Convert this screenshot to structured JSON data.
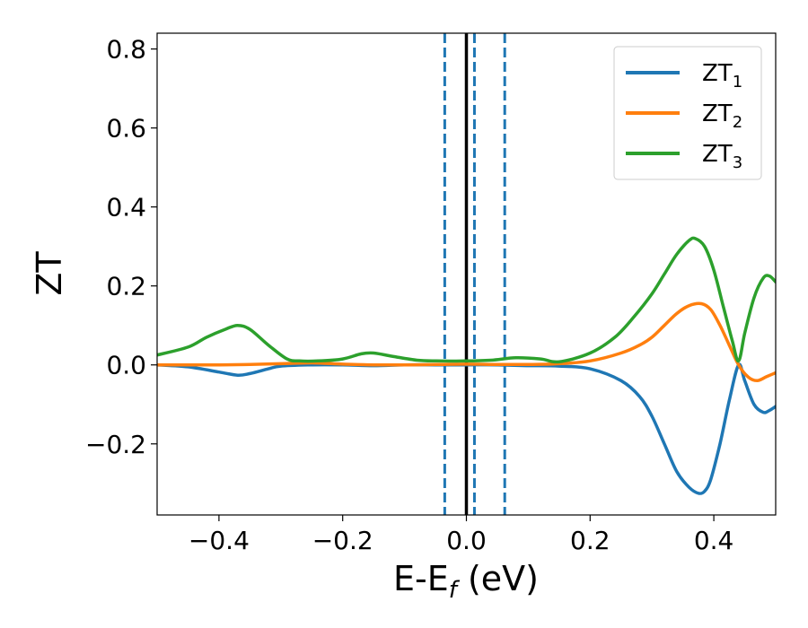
{
  "chart_data": {
    "type": "line",
    "title": "",
    "xlabel_main": "E-E",
    "xlabel_sub": "f",
    "xlabel_unit": " (eV)",
    "ylabel": "ZT",
    "xlim": [
      -0.5,
      0.5
    ],
    "ylim": [
      -0.38,
      0.84
    ],
    "xticks": [
      -0.4,
      -0.2,
      0.0,
      0.2,
      0.4
    ],
    "xtick_labels": [
      "−0.4",
      "−0.2",
      "0.0",
      "0.2",
      "0.4"
    ],
    "yticks": [
      -0.2,
      0.0,
      0.2,
      0.4,
      0.6,
      0.8
    ],
    "ytick_labels": [
      "−0.2",
      "0.0",
      "0.2",
      "0.4",
      "0.6",
      "0.8"
    ],
    "grid": false,
    "legend_position": "top-right",
    "vlines": [
      {
        "x": 0.0,
        "style": "solid",
        "color": "#000000"
      },
      {
        "x": -0.035,
        "style": "dashed",
        "color": "#1f77b4"
      },
      {
        "x": 0.013,
        "style": "dashed",
        "color": "#1f77b4"
      },
      {
        "x": 0.062,
        "style": "dashed",
        "color": "#1f77b4"
      }
    ],
    "series": [
      {
        "name": "ZT",
        "name_sub": "1",
        "color": "#1f77b4",
        "x": [
          -0.5,
          -0.45,
          -0.4,
          -0.37,
          -0.35,
          -0.32,
          -0.3,
          -0.25,
          -0.2,
          -0.15,
          -0.1,
          -0.05,
          0.0,
          0.05,
          0.1,
          0.15,
          0.2,
          0.25,
          0.28,
          0.3,
          0.32,
          0.34,
          0.36,
          0.375,
          0.385,
          0.395,
          0.41,
          0.425,
          0.44,
          0.45,
          0.465,
          0.48,
          0.49,
          0.5
        ],
        "y": [
          0.0,
          -0.005,
          -0.018,
          -0.026,
          -0.022,
          -0.01,
          -0.003,
          0.0,
          0.0,
          -0.002,
          0.0,
          0.0,
          0.0,
          0.0,
          -0.002,
          -0.003,
          -0.01,
          -0.04,
          -0.08,
          -0.13,
          -0.2,
          -0.27,
          -0.31,
          -0.325,
          -0.32,
          -0.29,
          -0.2,
          -0.09,
          0.0,
          -0.04,
          -0.1,
          -0.12,
          -0.115,
          -0.105
        ]
      },
      {
        "name": "ZT",
        "name_sub": "2",
        "color": "#ff7f0e",
        "x": [
          -0.5,
          -0.4,
          -0.35,
          -0.3,
          -0.25,
          -0.2,
          -0.15,
          -0.1,
          -0.05,
          0.0,
          0.05,
          0.1,
          0.15,
          0.2,
          0.25,
          0.28,
          0.3,
          0.32,
          0.34,
          0.36,
          0.38,
          0.395,
          0.41,
          0.425,
          0.44,
          0.455,
          0.47,
          0.485,
          0.5
        ],
        "y": [
          0.0,
          0.0,
          0.001,
          0.003,
          0.005,
          0.002,
          0.0,
          0.0,
          0.001,
          0.002,
          0.001,
          0.001,
          0.003,
          0.01,
          0.03,
          0.05,
          0.07,
          0.1,
          0.13,
          0.15,
          0.155,
          0.14,
          0.1,
          0.05,
          0.0,
          -0.03,
          -0.04,
          -0.03,
          -0.02
        ]
      },
      {
        "name": "ZT",
        "name_sub": "3",
        "color": "#2ca02c",
        "x": [
          -0.5,
          -0.45,
          -0.42,
          -0.39,
          -0.37,
          -0.35,
          -0.32,
          -0.29,
          -0.27,
          -0.24,
          -0.2,
          -0.17,
          -0.15,
          -0.12,
          -0.08,
          -0.05,
          0.0,
          0.04,
          0.08,
          0.12,
          0.15,
          0.2,
          0.24,
          0.27,
          0.3,
          0.32,
          0.34,
          0.36,
          0.37,
          0.385,
          0.4,
          0.415,
          0.43,
          0.44,
          0.45,
          0.465,
          0.48,
          0.49,
          0.5
        ],
        "y": [
          0.025,
          0.045,
          0.07,
          0.09,
          0.1,
          0.09,
          0.05,
          0.015,
          0.01,
          0.01,
          0.015,
          0.028,
          0.03,
          0.022,
          0.012,
          0.01,
          0.01,
          0.012,
          0.018,
          0.015,
          0.008,
          0.03,
          0.07,
          0.12,
          0.18,
          0.23,
          0.28,
          0.315,
          0.32,
          0.3,
          0.24,
          0.15,
          0.06,
          0.01,
          0.08,
          0.17,
          0.22,
          0.225,
          0.21
        ]
      }
    ]
  }
}
